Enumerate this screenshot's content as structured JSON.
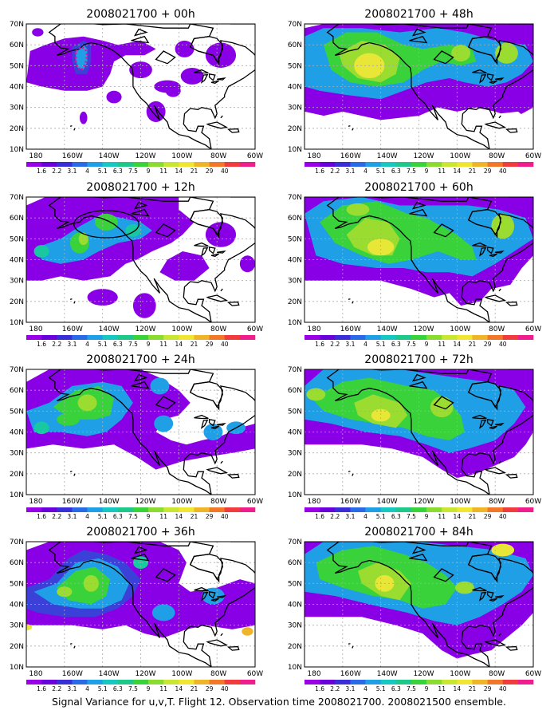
{
  "caption": "Signal Variance for u,v,T. Flight 12. Observation time 2008021700. 2008021500 ensemble.",
  "map": {
    "lon_labels": [
      "180",
      "160W",
      "140W",
      "120W",
      "100W",
      "80W",
      "60W"
    ],
    "lat_labels": [
      "10N",
      "20N",
      "30N",
      "40N",
      "50N",
      "60N",
      "70N"
    ],
    "colorbar_labels": [
      "1.6",
      "2.2",
      "3.1",
      "4",
      "5.1",
      "6.3",
      "7.5",
      "9",
      "11",
      "14",
      "21",
      "29",
      "40"
    ],
    "colorbar_colors": [
      "#9a00e6",
      "#6a00dc",
      "#3a2ed6",
      "#2a6ae6",
      "#1fa0e6",
      "#17c8c0",
      "#1ec88a",
      "#3ad23a",
      "#8adc30",
      "#c8e632",
      "#f0e632",
      "#f0b428",
      "#f07828",
      "#f03c3c",
      "#f01e8c"
    ]
  },
  "panels": [
    {
      "title": "2008021700 + 00h",
      "id": "p00"
    },
    {
      "title": "2008021700 + 48h",
      "id": "p48"
    },
    {
      "title": "2008021700 + 12h",
      "id": "p12"
    },
    {
      "title": "2008021700 + 60h",
      "id": "p60"
    },
    {
      "title": "2008021700 + 24h",
      "id": "p24"
    },
    {
      "title": "2008021700 + 72h",
      "id": "p72"
    },
    {
      "title": "2008021700 + 36h",
      "id": "p36"
    },
    {
      "title": "2008021700 + 84h",
      "id": "p84"
    }
  ]
}
